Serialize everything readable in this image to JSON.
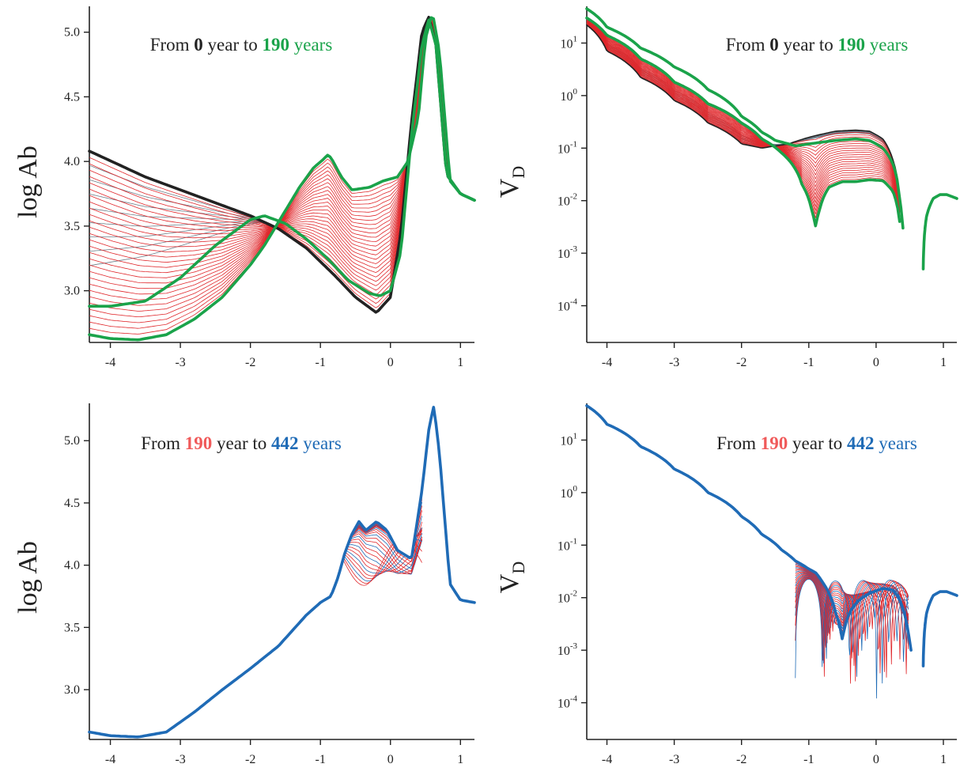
{
  "colors": {
    "black": "#222222",
    "grey": "#6f7f8a",
    "red": "#e0272b",
    "green": "#1aa34a",
    "salmon": "#f05a5a",
    "blue": "#1f6bb6"
  },
  "chart_data": [
    {
      "type": "line",
      "panel": "top-left",
      "ylabel": "log Ab",
      "xlim": [
        -4.3,
        1.2
      ],
      "ylim": [
        2.6,
        5.2
      ],
      "x_ticks": [
        "-4",
        "-3",
        "-2",
        "-1",
        "0",
        "1"
      ],
      "y_ticks": [
        "5.0",
        "4.5",
        "4.0",
        "3.5",
        "3.0"
      ],
      "annotation": {
        "prefix": "From",
        "start": "0",
        "middle": "year to",
        "end": "190",
        "suffix": "years"
      },
      "series": [
        {
          "color": "black",
          "bold": true,
          "x": [
            -4.3,
            -3.5,
            -3,
            -2.5,
            -2,
            -1.6,
            -1.2,
            -0.8,
            -0.5,
            -0.2,
            0,
            0.15,
            0.3,
            0.45,
            0.55,
            0.65,
            0.8,
            1.0,
            1.2
          ],
          "y": [
            4.08,
            3.88,
            3.78,
            3.68,
            3.58,
            3.48,
            3.33,
            3.12,
            2.95,
            2.83,
            2.95,
            3.45,
            4.3,
            5.0,
            5.12,
            4.9,
            3.9,
            3.75,
            3.7
          ]
        },
        {
          "color": "green",
          "bold": true,
          "x": [
            -4.3,
            -4.0,
            -3.6,
            -3.2,
            -2.8,
            -2.4,
            -2.0,
            -1.8,
            -1.5,
            -1.3,
            -1.1,
            -0.95,
            -0.9,
            -0.85,
            -0.7,
            -0.55,
            -0.3,
            -0.1,
            0.1,
            0.25,
            0.4,
            0.5,
            0.6,
            0.7,
            0.85,
            1.0,
            1.2
          ],
          "y": [
            2.66,
            2.63,
            2.62,
            2.66,
            2.78,
            2.95,
            3.2,
            3.35,
            3.62,
            3.8,
            3.95,
            4.02,
            4.05,
            4.03,
            3.88,
            3.78,
            3.8,
            3.85,
            3.88,
            4.0,
            4.35,
            4.95,
            5.15,
            4.85,
            3.85,
            3.75,
            3.7
          ]
        },
        {
          "color": "green",
          "bold": true,
          "x": [
            -4.3,
            -4.0,
            -3.5,
            -3.0,
            -2.5,
            -2.0,
            -1.8,
            -1.5,
            -1.2,
            -0.9,
            -0.6,
            -0.3,
            -0.15,
            0,
            0.15,
            0.3,
            0.45,
            0.55,
            0.65,
            0.8,
            1.0,
            1.2
          ],
          "y": [
            2.88,
            2.88,
            2.92,
            3.1,
            3.35,
            3.55,
            3.58,
            3.52,
            3.4,
            3.25,
            3.08,
            2.98,
            2.96,
            3.0,
            3.3,
            4.2,
            4.9,
            5.1,
            4.9,
            3.9,
            3.75,
            3.7
          ]
        }
      ]
    },
    {
      "type": "line",
      "panel": "top-right",
      "ylabel": "V",
      "ylabel_subscript": "D",
      "yscale": "log",
      "xlim": [
        -4.3,
        1.2
      ],
      "ylim": [
        2e-05,
        50
      ],
      "x_ticks": [
        "-4",
        "-3",
        "-2",
        "-1",
        "0",
        "1"
      ],
      "y_ticks": [
        {
          "base": "10",
          "exp": "1",
          "value": 10
        },
        {
          "base": "10",
          "exp": "0",
          "value": 1
        },
        {
          "base": "10",
          "exp": "-1",
          "value": 0.1
        },
        {
          "base": "10",
          "exp": "-2",
          "value": 0.01
        },
        {
          "base": "10",
          "exp": "-3",
          "value": 0.001
        },
        {
          "base": "10",
          "exp": "-4",
          "value": 0.0001
        }
      ],
      "annotation": {
        "prefix": "From",
        "start": "0",
        "middle": "year to",
        "end": "190",
        "suffix": "years"
      },
      "series": [
        {
          "color": "black",
          "bold": false,
          "x": [
            -4.3,
            -4.0,
            -3.5,
            -3.0,
            -2.5,
            -2.0,
            -1.7,
            -1.3,
            -1.0,
            -0.6,
            -0.3,
            -0.1,
            0.1,
            0.25,
            0.35,
            0.4
          ],
          "y": [
            22,
            7,
            2.2,
            0.8,
            0.3,
            0.12,
            0.1,
            0.12,
            0.16,
            0.21,
            0.22,
            0.21,
            0.15,
            0.06,
            0.01,
            0.003
          ]
        },
        {
          "color": "green",
          "bold": true,
          "x": [
            -4.3,
            -4.0,
            -3.5,
            -3.0,
            -2.5,
            -2.0,
            -1.7,
            -1.5,
            -1.2,
            -1.0,
            -0.6,
            -0.3,
            -0.1,
            0.1,
            0.25,
            0.35,
            0.4
          ],
          "y": [
            45,
            20,
            8,
            3.5,
            1.3,
            0.4,
            0.2,
            0.14,
            0.11,
            0.12,
            0.14,
            0.15,
            0.14,
            0.1,
            0.05,
            0.01,
            0.003
          ]
        },
        {
          "color": "green",
          "bold": true,
          "x": [
            -4.3,
            -4.0,
            -3.5,
            -3.0,
            -2.5,
            -2.0,
            -1.7,
            -1.4,
            -1.1,
            -0.95,
            -0.9,
            -0.85,
            -0.7,
            -0.5,
            -0.3,
            -0.1,
            0.1,
            0.25,
            0.35
          ],
          "y": [
            30,
            14,
            5,
            1.8,
            0.7,
            0.3,
            0.15,
            0.08,
            0.02,
            0.006,
            0.0033,
            0.006,
            0.018,
            0.023,
            0.023,
            0.025,
            0.024,
            0.015,
            0.004
          ]
        },
        {
          "color": "green",
          "bold": true,
          "x": [
            0.7,
            0.75,
            0.85,
            0.95,
            1.05,
            1.2
          ],
          "y": [
            0.0005,
            0.005,
            0.011,
            0.013,
            0.013,
            0.011
          ]
        }
      ]
    },
    {
      "type": "line",
      "panel": "bottom-left",
      "ylabel": "log Ab",
      "xlim": [
        -4.3,
        1.2
      ],
      "ylim": [
        2.6,
        5.3
      ],
      "x_ticks": [
        "-4",
        "-3",
        "-2",
        "-1",
        "0",
        "1"
      ],
      "y_ticks": [
        "5.0",
        "4.5",
        "4.0",
        "3.5",
        "3.0"
      ],
      "annotation": {
        "prefix": "From",
        "start": "190",
        "middle": "year to",
        "end": "442",
        "suffix": "years"
      },
      "series": [
        {
          "color": "blue",
          "bold": true,
          "x": [
            -4.3,
            -4.0,
            -3.6,
            -3.2,
            -2.8,
            -2.4,
            -2.0,
            -1.6,
            -1.2,
            -1.0,
            -0.85,
            -0.75,
            -0.65,
            -0.55,
            -0.45,
            -0.35,
            -0.2,
            -0.05,
            0.1,
            0.3,
            0.45,
            0.55,
            0.62,
            0.7,
            0.85,
            1.0,
            1.2
          ],
          "y": [
            2.66,
            2.63,
            2.62,
            2.66,
            2.82,
            3.0,
            3.17,
            3.35,
            3.6,
            3.7,
            3.75,
            3.9,
            4.1,
            4.25,
            4.35,
            4.28,
            4.35,
            4.28,
            4.12,
            4.05,
            4.6,
            5.1,
            5.28,
            4.9,
            3.85,
            3.72,
            3.7
          ]
        }
      ]
    },
    {
      "type": "line",
      "panel": "bottom-right",
      "ylabel": "V",
      "ylabel_subscript": "D",
      "yscale": "log",
      "xlim": [
        -4.3,
        1.2
      ],
      "ylim": [
        2e-05,
        50
      ],
      "x_ticks": [
        "-4",
        "-3",
        "-2",
        "-1",
        "0",
        "1"
      ],
      "y_ticks": [
        {
          "base": "10",
          "exp": "1",
          "value": 10
        },
        {
          "base": "10",
          "exp": "0",
          "value": 1
        },
        {
          "base": "10",
          "exp": "-1",
          "value": 0.1
        },
        {
          "base": "10",
          "exp": "-2",
          "value": 0.01
        },
        {
          "base": "10",
          "exp": "-3",
          "value": 0.001
        },
        {
          "base": "10",
          "exp": "-4",
          "value": 0.0001
        }
      ],
      "annotation": {
        "prefix": "From",
        "start": "190",
        "middle": "year to",
        "end": "442",
        "suffix": "years"
      },
      "series": [
        {
          "color": "blue",
          "bold": true,
          "x": [
            -4.3,
            -4.0,
            -3.5,
            -3.0,
            -2.5,
            -2.0,
            -1.7,
            -1.4,
            -1.2,
            -1.0,
            -0.9,
            -0.8,
            -0.7,
            -0.6,
            -0.5,
            -0.4,
            -0.25,
            -0.1,
            0.1,
            0.25,
            0.35,
            0.42,
            0.48,
            0.52
          ],
          "y": [
            45,
            20,
            7.5,
            2.8,
            1.0,
            0.35,
            0.16,
            0.08,
            0.05,
            0.035,
            0.03,
            0.02,
            0.012,
            0.005,
            0.0015,
            0.005,
            0.009,
            0.012,
            0.015,
            0.014,
            0.009,
            0.005,
            0.002,
            0.001
          ]
        },
        {
          "color": "blue",
          "bold": true,
          "x": [
            0.7,
            0.75,
            0.85,
            0.95,
            1.05,
            1.2
          ],
          "y": [
            0.0005,
            0.005,
            0.011,
            0.013,
            0.013,
            0.011
          ]
        }
      ]
    }
  ]
}
